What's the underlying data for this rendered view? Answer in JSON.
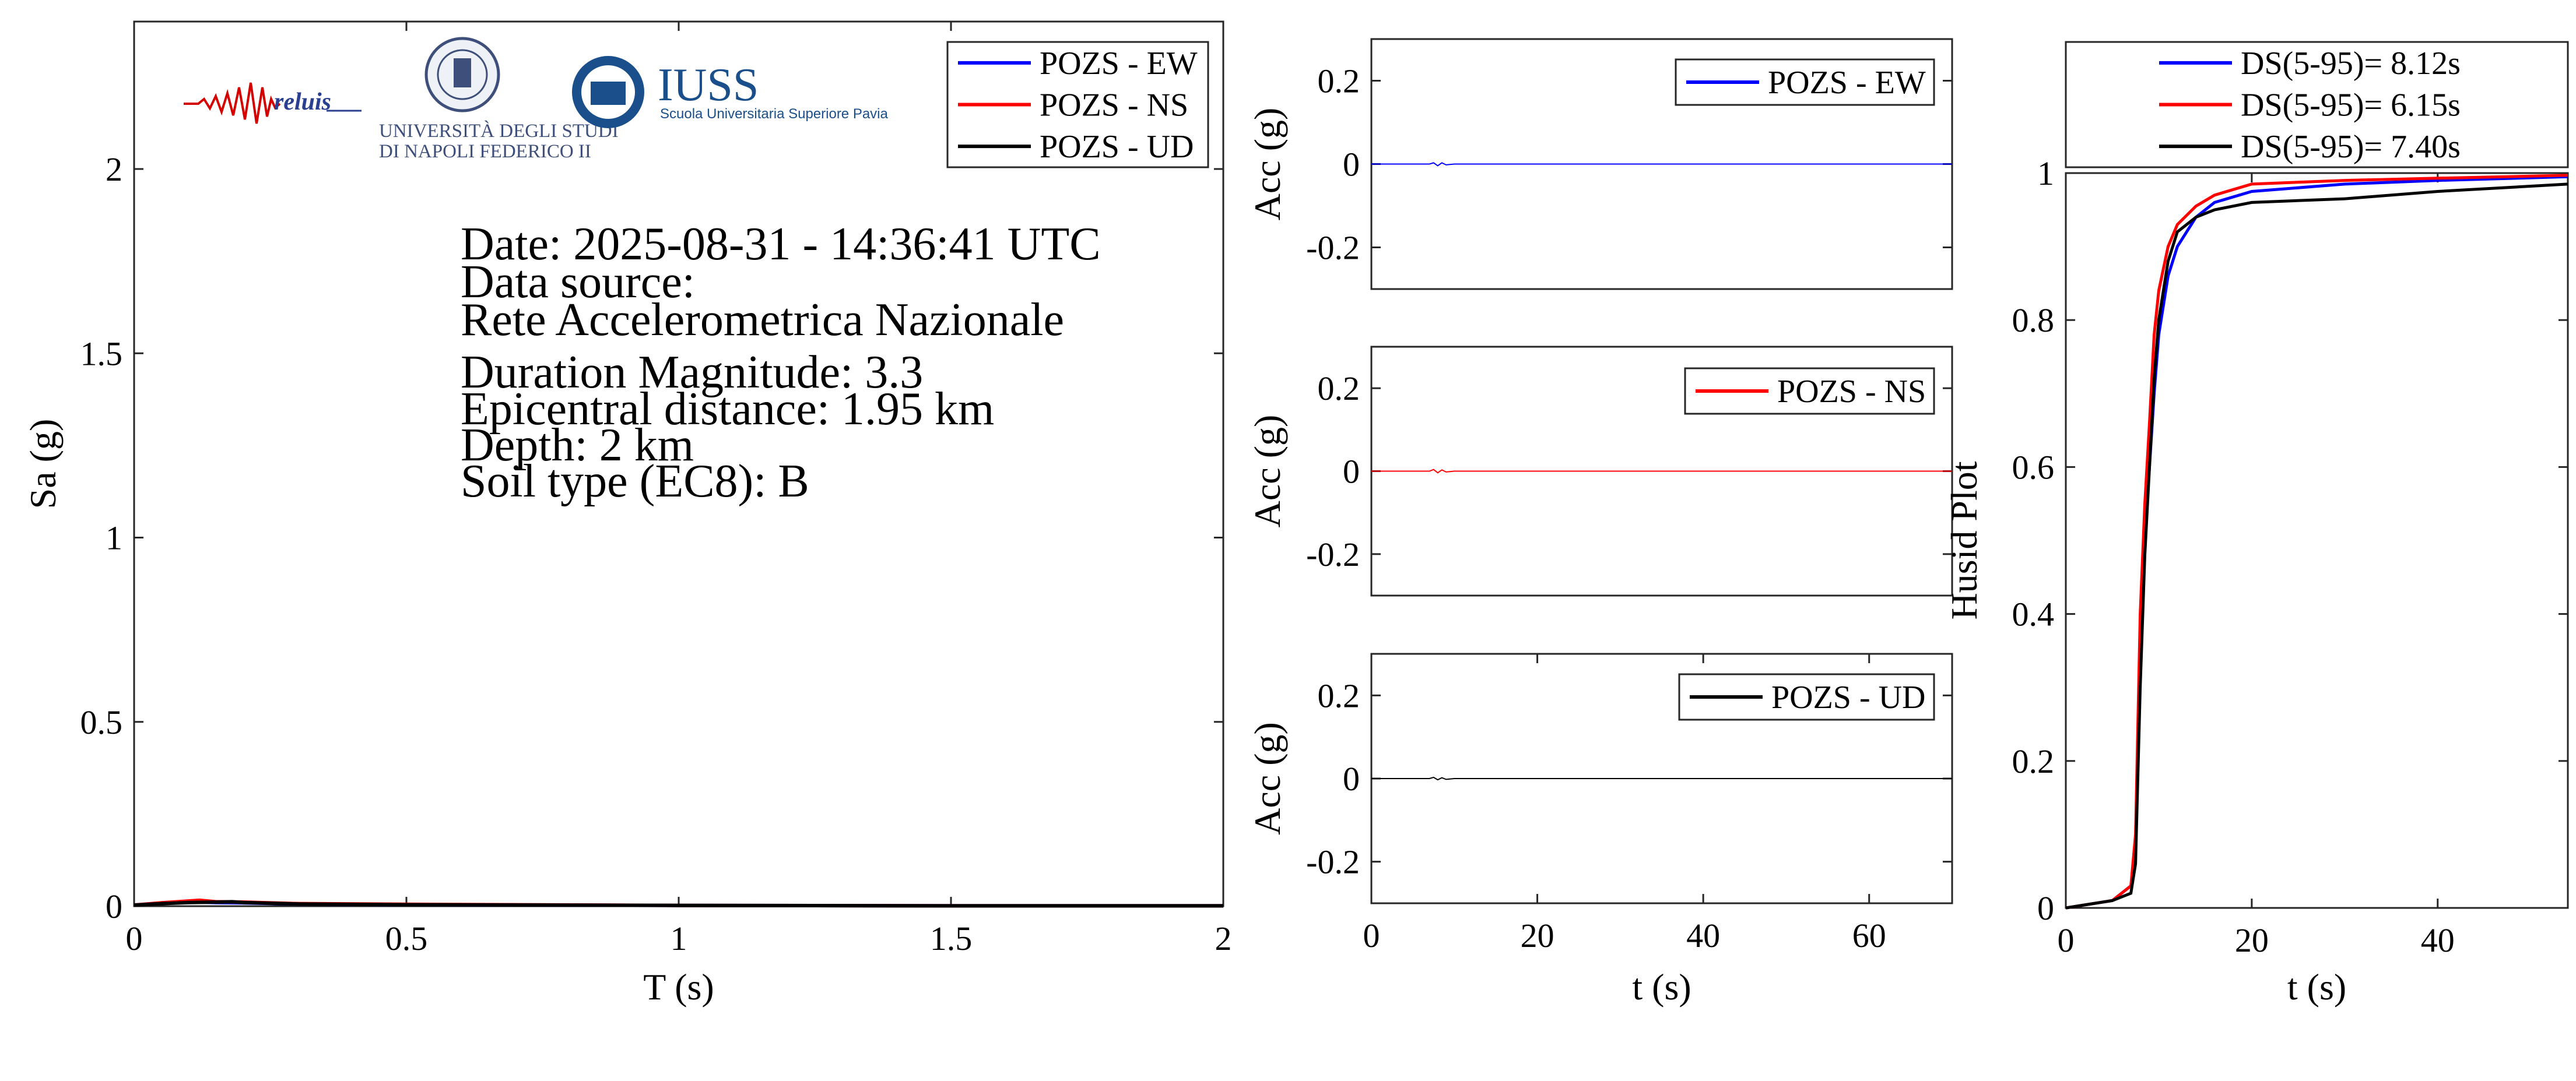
{
  "info": {
    "date": "Date: 2025-08-31 - 14:36:41 UTC",
    "source_label": "Data source:",
    "source_name": "Rete Accelerometrica Nazionale",
    "magnitude": "Duration Magnitude: 3.3",
    "distance": "Epicentral distance: 1.95 km",
    "depth": "Depth: 2 km",
    "soil": "Soil type (EC8): B"
  },
  "logos": {
    "reluis": "reluis",
    "unina_line1": "UNIVERSITÀ DEGLI STUDI",
    "unina_line2": "DI NAPOLI FEDERICO II",
    "iuss": "IUSS",
    "iuss_sub": "Scuola Universitaria Superiore Pavia"
  },
  "colors": {
    "ew": "#0000ff",
    "ns": "#ff0000",
    "ud": "#000000"
  },
  "chart_data": [
    {
      "id": "spectrum",
      "type": "line",
      "xlabel": "T (s)",
      "ylabel": "Sa (g)",
      "xlim": [
        0,
        2
      ],
      "ylim": [
        0,
        2.4
      ],
      "xticks": [
        0,
        0.5,
        1,
        1.5,
        2
      ],
      "xtick_labels": [
        "0",
        "0.5",
        "1",
        "1.5",
        "2"
      ],
      "yticks": [
        0,
        0.5,
        1,
        1.5,
        2
      ],
      "ytick_labels": [
        "0",
        "0.5",
        "1",
        "1.5",
        "2"
      ],
      "legend": "top-right",
      "series": [
        {
          "name": "POZS - EW",
          "color": "#0000ff",
          "x": [
            0,
            0.05,
            0.1,
            0.15,
            0.2,
            0.3,
            0.5,
            1,
            1.5,
            2
          ],
          "y": [
            0.003,
            0.008,
            0.012,
            0.01,
            0.009,
            0.006,
            0.004,
            0.002,
            0.001,
            0.001
          ]
        },
        {
          "name": "POZS - NS",
          "color": "#ff0000",
          "x": [
            0,
            0.05,
            0.1,
            0.12,
            0.15,
            0.2,
            0.3,
            0.5,
            1,
            1.5,
            2
          ],
          "y": [
            0.003,
            0.009,
            0.014,
            0.016,
            0.012,
            0.011,
            0.007,
            0.005,
            0.002,
            0.001,
            0.001
          ]
        },
        {
          "name": "POZS - UD",
          "color": "#000000",
          "x": [
            0,
            0.05,
            0.1,
            0.15,
            0.18,
            0.2,
            0.3,
            0.5,
            1,
            1.5,
            2
          ],
          "y": [
            0.003,
            0.007,
            0.01,
            0.011,
            0.012,
            0.01,
            0.006,
            0.004,
            0.002,
            0.001,
            0.001
          ]
        }
      ]
    },
    {
      "id": "acc_ew",
      "type": "line",
      "ylabel": "Acc (g)",
      "xlim": [
        0,
        70
      ],
      "ylim": [
        -0.3,
        0.3
      ],
      "yticks": [
        -0.2,
        0,
        0.2
      ],
      "ytick_labels": [
        "-0.2",
        "0",
        "0.2"
      ],
      "legend": "top-right",
      "series": [
        {
          "name": "POZS - EW",
          "color": "#0000ff",
          "x": [
            0,
            7,
            7.5,
            8,
            8.5,
            9,
            10,
            70
          ],
          "y": [
            0,
            0,
            0.003,
            -0.004,
            0.003,
            -0.002,
            0,
            0
          ]
        }
      ]
    },
    {
      "id": "acc_ns",
      "type": "line",
      "ylabel": "Acc (g)",
      "xlim": [
        0,
        70
      ],
      "ylim": [
        -0.3,
        0.3
      ],
      "yticks": [
        -0.2,
        0,
        0.2
      ],
      "ytick_labels": [
        "-0.2",
        "0",
        "0.2"
      ],
      "legend": "top-right",
      "series": [
        {
          "name": "POZS - NS",
          "color": "#ff0000",
          "x": [
            0,
            7,
            7.5,
            8,
            8.5,
            9,
            10,
            70
          ],
          "y": [
            0,
            0,
            0.004,
            -0.004,
            0.003,
            -0.002,
            0,
            0
          ]
        }
      ]
    },
    {
      "id": "acc_ud",
      "type": "line",
      "ylabel": "Acc (g)",
      "xlabel": "t (s)",
      "xlim": [
        0,
        70
      ],
      "ylim": [
        -0.3,
        0.3
      ],
      "xticks": [
        0,
        20,
        40,
        60
      ],
      "xtick_labels": [
        "0",
        "20",
        "40",
        "60"
      ],
      "yticks": [
        -0.2,
        0,
        0.2
      ],
      "ytick_labels": [
        "-0.2",
        "0",
        "0.2"
      ],
      "legend": "top-right",
      "series": [
        {
          "name": "POZS - UD",
          "color": "#000000",
          "x": [
            0,
            7,
            7.5,
            8,
            8.5,
            9,
            10,
            70
          ],
          "y": [
            0,
            0,
            0.003,
            -0.003,
            0.002,
            -0.002,
            0,
            0
          ]
        }
      ]
    },
    {
      "id": "husid",
      "type": "line",
      "xlabel": "t (s)",
      "ylabel": "Husid Plot",
      "xlim": [
        0,
        54
      ],
      "ylim": [
        0,
        1
      ],
      "xticks": [
        0,
        20,
        40
      ],
      "xtick_labels": [
        "0",
        "20",
        "40"
      ],
      "yticks": [
        0,
        0.2,
        0.4,
        0.6,
        0.8,
        1
      ],
      "ytick_labels": [
        "0",
        "0.2",
        "0.4",
        "0.6",
        "0.8",
        "1"
      ],
      "legend": "top",
      "series": [
        {
          "name": "DS(5-95)= 8.12s",
          "color": "#0000ff",
          "x": [
            0,
            5,
            7,
            7.5,
            8,
            8.5,
            9,
            9.5,
            10,
            11,
            12,
            14,
            16,
            20,
            30,
            40,
            54
          ],
          "y": [
            0,
            0.01,
            0.03,
            0.08,
            0.35,
            0.5,
            0.6,
            0.7,
            0.78,
            0.86,
            0.9,
            0.94,
            0.96,
            0.975,
            0.985,
            0.99,
            0.995
          ]
        },
        {
          "name": "DS(5-95)= 6.15s",
          "color": "#ff0000",
          "x": [
            0,
            5,
            7,
            7.5,
            8,
            8.5,
            9,
            9.5,
            10,
            11,
            12,
            14,
            16,
            20,
            30,
            40,
            54
          ],
          "y": [
            0,
            0.01,
            0.03,
            0.1,
            0.4,
            0.55,
            0.66,
            0.78,
            0.84,
            0.9,
            0.93,
            0.955,
            0.97,
            0.985,
            0.99,
            0.993,
            0.997
          ]
        },
        {
          "name": "DS(5-95)= 7.40s",
          "color": "#000000",
          "x": [
            0,
            5,
            7,
            7.5,
            8,
            8.5,
            9,
            9.5,
            10,
            11,
            12,
            14,
            16,
            20,
            30,
            40,
            54
          ],
          "y": [
            0,
            0.01,
            0.02,
            0.06,
            0.3,
            0.48,
            0.6,
            0.72,
            0.8,
            0.88,
            0.92,
            0.94,
            0.95,
            0.96,
            0.965,
            0.975,
            0.985
          ]
        }
      ]
    }
  ]
}
